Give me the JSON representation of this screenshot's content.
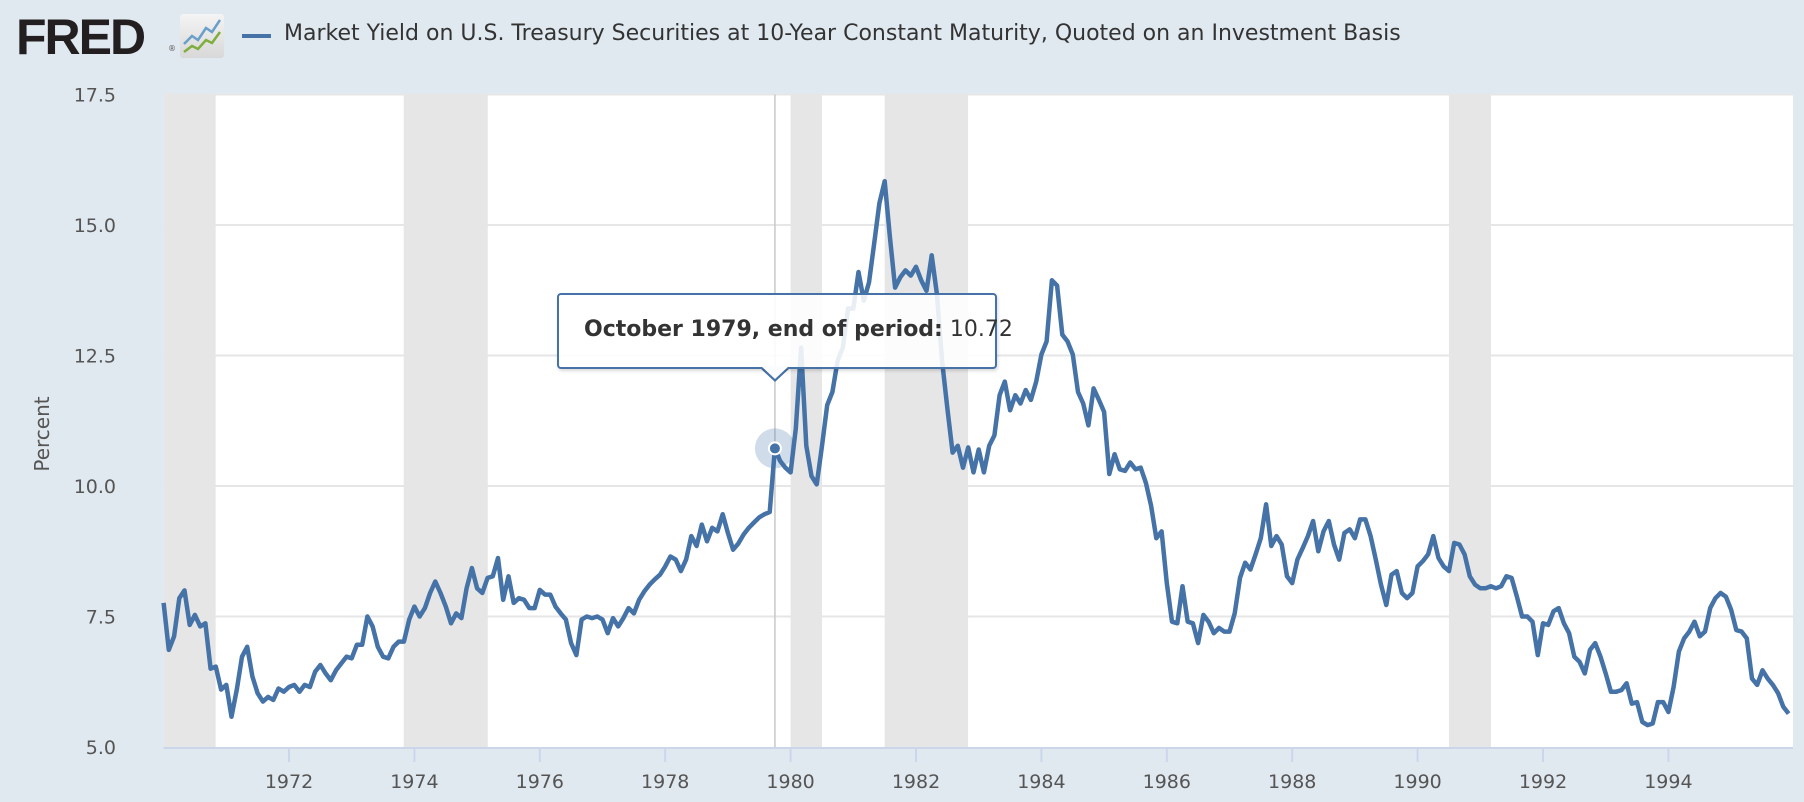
{
  "header": {
    "logo": "FRED",
    "logo_reg": "®",
    "series_title": "Market Yield on U.S. Treasury Securities at 10-Year Constant Maturity, Quoted on an Investment Basis"
  },
  "tooltip": {
    "label": "October 1979, end of period:",
    "value": "10.72"
  },
  "colors": {
    "line": "#4572a7",
    "recession": "#e6e6e6",
    "grid": "#e6e6e6",
    "background": "#e1e9f0"
  },
  "chart_data": {
    "type": "line",
    "title": "Market Yield on U.S. Treasury Securities at 10-Year Constant Maturity, Quoted on an Investment Basis",
    "xlabel": "",
    "ylabel": "Percent",
    "frequency": "monthly, end of period",
    "x_start": "1970-01",
    "x_end": "1995-12",
    "xlim": [
      1970,
      1996
    ],
    "ylim": [
      5.0,
      17.5
    ],
    "yticks": [
      "5.0",
      "7.5",
      "10.0",
      "12.5",
      "15.0",
      "17.5"
    ],
    "xticks": [
      "1972",
      "1974",
      "1976",
      "1978",
      "1980",
      "1982",
      "1984",
      "1986",
      "1988",
      "1990",
      "1992",
      "1994"
    ],
    "grid": true,
    "legend": "top-left",
    "recessions": [
      [
        1969.92,
        1970.83
      ],
      [
        1973.83,
        1975.17
      ],
      [
        1980.0,
        1980.5
      ],
      [
        1981.5,
        1982.83
      ],
      [
        1990.5,
        1991.17
      ]
    ],
    "highlight": {
      "date": "1979-10",
      "index": 117,
      "value": 10.72
    },
    "values": [
      7.76,
      6.86,
      7.12,
      7.85,
      8.0,
      7.34,
      7.53,
      7.31,
      7.37,
      6.5,
      6.54,
      6.1,
      6.19,
      5.58,
      6.1,
      6.73,
      6.92,
      6.35,
      6.03,
      5.87,
      5.96,
      5.9,
      6.12,
      6.06,
      6.15,
      6.19,
      6.06,
      6.19,
      6.15,
      6.44,
      6.57,
      6.41,
      6.28,
      6.47,
      6.6,
      6.73,
      6.7,
      6.96,
      6.96,
      7.5,
      7.31,
      6.92,
      6.73,
      6.7,
      6.92,
      7.02,
      7.02,
      7.44,
      7.69,
      7.5,
      7.66,
      7.95,
      8.17,
      7.95,
      7.69,
      7.37,
      7.56,
      7.47,
      8.04,
      8.43,
      8.04,
      7.95,
      8.24,
      8.27,
      8.62,
      7.82,
      8.27,
      7.76,
      7.85,
      7.82,
      7.66,
      7.66,
      8.01,
      7.92,
      7.92,
      7.69,
      7.56,
      7.44,
      6.99,
      6.76,
      7.44,
      7.5,
      7.47,
      7.5,
      7.44,
      7.18,
      7.47,
      7.31,
      7.47,
      7.66,
      7.56,
      7.82,
      7.98,
      8.11,
      8.21,
      8.3,
      8.46,
      8.65,
      8.59,
      8.37,
      8.59,
      9.04,
      8.85,
      9.26,
      8.94,
      9.2,
      9.13,
      9.46,
      9.1,
      8.78,
      8.9,
      9.07,
      9.2,
      9.3,
      9.4,
      9.46,
      9.5,
      10.72,
      10.48,
      10.35,
      10.26,
      11.1,
      12.65,
      10.77,
      10.19,
      10.03,
      10.77,
      11.55,
      11.8,
      12.4,
      12.65,
      13.4,
      13.4,
      14.1,
      13.55,
      13.9,
      14.65,
      15.42,
      15.84,
      14.77,
      13.8,
      14.0,
      14.13,
      14.03,
      14.2,
      13.94,
      13.74,
      14.42,
      13.68,
      12.39,
      11.48,
      10.64,
      10.77,
      10.35,
      10.74,
      10.26,
      10.7,
      10.26,
      10.77,
      10.97,
      11.74,
      12.0,
      11.45,
      11.74,
      11.58,
      11.84,
      11.65,
      12.0,
      12.52,
      12.77,
      13.94,
      13.84,
      12.9,
      12.77,
      12.52,
      11.8,
      11.58,
      11.16,
      11.87,
      11.65,
      11.42,
      10.23,
      10.61,
      10.32,
      10.29,
      10.45,
      10.32,
      10.35,
      10.06,
      9.62,
      9.0,
      9.13,
      8.14,
      7.4,
      7.37,
      8.08,
      7.4,
      7.37,
      6.99,
      7.53,
      7.4,
      7.18,
      7.28,
      7.21,
      7.21,
      7.56,
      8.24,
      8.53,
      8.4,
      8.69,
      9.0,
      9.65,
      8.85,
      9.04,
      8.88,
      8.27,
      8.14,
      8.59,
      8.81,
      9.04,
      9.33,
      8.75,
      9.13,
      9.33,
      8.88,
      8.59,
      9.1,
      9.17,
      9.0,
      9.36,
      9.36,
      9.04,
      8.59,
      8.11,
      7.72,
      8.3,
      8.37,
      7.95,
      7.85,
      7.95,
      8.46,
      8.56,
      8.69,
      9.04,
      8.62,
      8.46,
      8.37,
      8.91,
      8.88,
      8.69,
      8.27,
      8.11,
      8.04,
      8.04,
      8.08,
      8.04,
      8.08,
      8.27,
      8.24,
      7.88,
      7.5,
      7.5,
      7.4,
      6.76,
      7.37,
      7.34,
      7.6,
      7.66,
      7.37,
      7.18,
      6.73,
      6.63,
      6.41,
      6.86,
      6.99,
      6.73,
      6.41,
      6.06,
      6.06,
      6.09,
      6.22,
      5.83,
      5.86,
      5.48,
      5.42,
      5.45,
      5.86,
      5.86,
      5.67,
      6.15,
      6.83,
      7.08,
      7.21,
      7.4,
      7.12,
      7.21,
      7.66,
      7.85,
      7.95,
      7.88,
      7.63,
      7.24,
      7.21,
      7.08,
      6.31,
      6.19,
      6.47,
      6.31,
      6.19,
      6.03,
      5.77,
      5.64
    ]
  }
}
